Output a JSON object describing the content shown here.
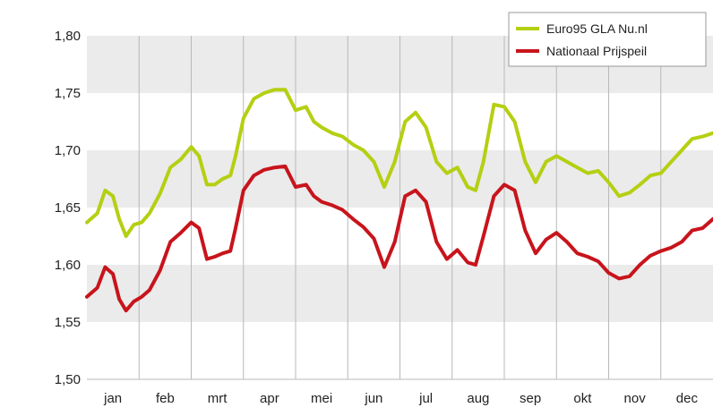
{
  "chart_data": {
    "type": "line",
    "title": "",
    "xlabel": "",
    "ylabel": "",
    "ylim": [
      1.5,
      1.8
    ],
    "yticks": [
      "1,80",
      "1,75",
      "1,70",
      "1,65",
      "1,60",
      "1,55",
      "1,50"
    ],
    "ytick_values": [
      1.8,
      1.75,
      1.7,
      1.65,
      1.6,
      1.55,
      1.5
    ],
    "months": [
      "jan",
      "feb",
      "mrt",
      "apr",
      "mei",
      "jun",
      "jul",
      "aug",
      "sep",
      "okt",
      "nov",
      "dec"
    ],
    "xlim": [
      0,
      12
    ],
    "legend_position": "top-right",
    "grid": "alternating horizontal bands",
    "series": [
      {
        "name": "Euro95 GLA Nu.nl",
        "color": "#b5cf12",
        "x": [
          0,
          0.2,
          0.35,
          0.5,
          0.62,
          0.75,
          0.9,
          1.05,
          1.2,
          1.4,
          1.6,
          1.8,
          2.0,
          2.15,
          2.3,
          2.45,
          2.6,
          2.75,
          2.85,
          3.0,
          3.2,
          3.4,
          3.6,
          3.8,
          4.0,
          4.2,
          4.35,
          4.5,
          4.7,
          4.9,
          5.1,
          5.3,
          5.5,
          5.7,
          5.9,
          6.1,
          6.3,
          6.5,
          6.7,
          6.9,
          7.1,
          7.3,
          7.45,
          7.6,
          7.8,
          8.0,
          8.2,
          8.4,
          8.6,
          8.8,
          9.0,
          9.2,
          9.4,
          9.6,
          9.8,
          10.0,
          10.2,
          10.4,
          10.6,
          10.8,
          11.0,
          11.2,
          11.4,
          11.6,
          11.8,
          12.0
        ],
        "values": [
          1.637,
          1.645,
          1.665,
          1.66,
          1.64,
          1.625,
          1.635,
          1.637,
          1.645,
          1.662,
          1.685,
          1.692,
          1.703,
          1.695,
          1.67,
          1.67,
          1.675,
          1.678,
          1.695,
          1.728,
          1.745,
          1.75,
          1.753,
          1.753,
          1.735,
          1.738,
          1.725,
          1.72,
          1.715,
          1.712,
          1.705,
          1.7,
          1.69,
          1.668,
          1.69,
          1.725,
          1.733,
          1.72,
          1.69,
          1.68,
          1.685,
          1.668,
          1.665,
          1.69,
          1.74,
          1.738,
          1.725,
          1.69,
          1.672,
          1.69,
          1.695,
          1.69,
          1.685,
          1.68,
          1.682,
          1.672,
          1.66,
          1.663,
          1.67,
          1.678,
          1.68,
          1.69,
          1.7,
          1.71,
          1.712,
          1.715
        ]
      },
      {
        "name": "Nationaal Prijspeil",
        "color": "#c8141c",
        "x": [
          0,
          0.2,
          0.35,
          0.5,
          0.62,
          0.75,
          0.9,
          1.05,
          1.2,
          1.4,
          1.6,
          1.8,
          2.0,
          2.15,
          2.3,
          2.45,
          2.6,
          2.75,
          2.85,
          3.0,
          3.2,
          3.4,
          3.6,
          3.8,
          4.0,
          4.2,
          4.35,
          4.5,
          4.7,
          4.9,
          5.1,
          5.3,
          5.5,
          5.7,
          5.9,
          6.1,
          6.3,
          6.5,
          6.7,
          6.9,
          7.1,
          7.3,
          7.45,
          7.6,
          7.8,
          8.0,
          8.2,
          8.4,
          8.6,
          8.8,
          9.0,
          9.2,
          9.4,
          9.6,
          9.8,
          10.0,
          10.2,
          10.4,
          10.6,
          10.8,
          11.0,
          11.2,
          11.4,
          11.6,
          11.8,
          12.0
        ],
        "values": [
          1.572,
          1.58,
          1.598,
          1.592,
          1.57,
          1.56,
          1.568,
          1.572,
          1.578,
          1.595,
          1.62,
          1.628,
          1.637,
          1.632,
          1.605,
          1.607,
          1.61,
          1.612,
          1.632,
          1.665,
          1.678,
          1.683,
          1.685,
          1.686,
          1.668,
          1.67,
          1.66,
          1.655,
          1.652,
          1.648,
          1.64,
          1.633,
          1.623,
          1.598,
          1.62,
          1.66,
          1.665,
          1.655,
          1.62,
          1.605,
          1.613,
          1.602,
          1.6,
          1.625,
          1.66,
          1.67,
          1.665,
          1.63,
          1.61,
          1.622,
          1.628,
          1.62,
          1.61,
          1.607,
          1.603,
          1.593,
          1.588,
          1.59,
          1.6,
          1.608,
          1.612,
          1.615,
          1.62,
          1.63,
          1.632,
          1.64
        ]
      }
    ]
  }
}
